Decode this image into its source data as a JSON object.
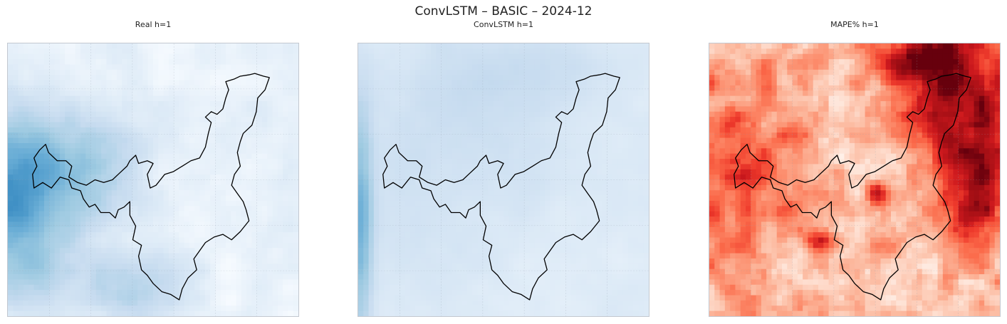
{
  "figure": {
    "suptitle": "ConvLSTM – BASIC – 2024-12"
  },
  "chart_data": [
    {
      "type": "heatmap",
      "title": "Real h=1",
      "colormap": "Blues",
      "grid": true,
      "axes_ticks": "none",
      "overlay": "region-boundary-outline"
    },
    {
      "type": "heatmap",
      "title": "ConvLSTM h=1",
      "colormap": "Blues",
      "grid": true,
      "axes_ticks": "none",
      "overlay": "region-boundary-outline"
    },
    {
      "type": "heatmap",
      "title": "MAPE% h=1",
      "colormap": "Reds",
      "grid": true,
      "axes_ticks": "none",
      "overlay": "region-boundary-outline"
    }
  ]
}
